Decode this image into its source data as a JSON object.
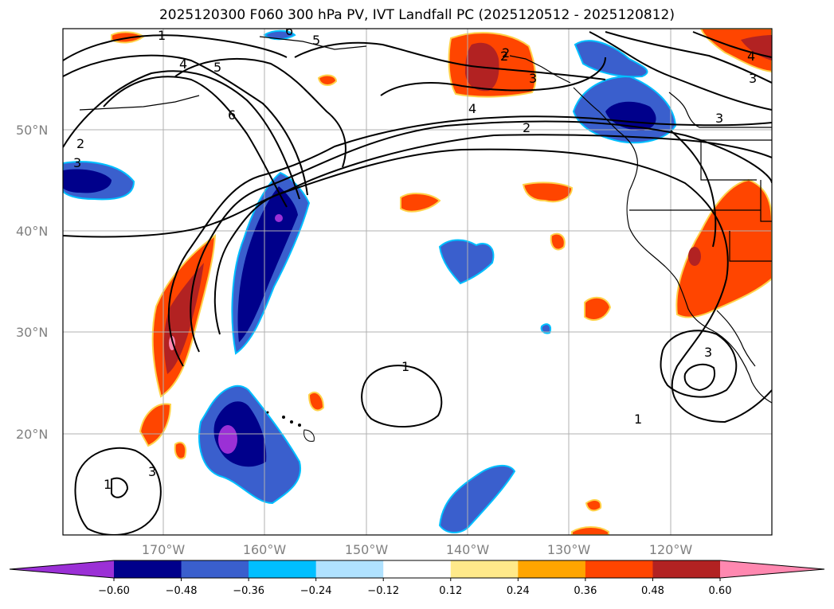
{
  "title": "2025120300 F060 300 hPa PV, IVT Landfall PC (2025120512 - 2025120812)",
  "latitude_labels": [
    "50°N",
    "40°N",
    "30°N",
    "20°N"
  ],
  "longitude_labels": [
    "170°W",
    "160°W",
    "150°W",
    "140°W",
    "130°W",
    "120°W"
  ],
  "contour_labels": [
    "1",
    "4",
    "5",
    "6",
    "2",
    "3",
    "5",
    "6",
    "4",
    "2",
    "3",
    "3",
    "4",
    "3",
    "2",
    "3",
    "1",
    "1",
    "3",
    "1",
    "2"
  ],
  "colorbar": {
    "ticks": [
      "−0.60",
      "−0.48",
      "−0.36",
      "−0.24",
      "−0.12",
      "0.12",
      "0.24",
      "0.36",
      "0.48",
      "0.60"
    ],
    "colors": [
      "#9b30d6",
      "#00008b",
      "#3a5fcd",
      "#00bfff",
      "#b0e2ff",
      "#ffffff",
      "#ffe98a",
      "#ffa500",
      "#ff4500",
      "#b22222",
      "#ff88b0"
    ]
  },
  "colors": {
    "grid": "#b0b0b0",
    "contour": "#000000",
    "coastline": "#000000"
  }
}
